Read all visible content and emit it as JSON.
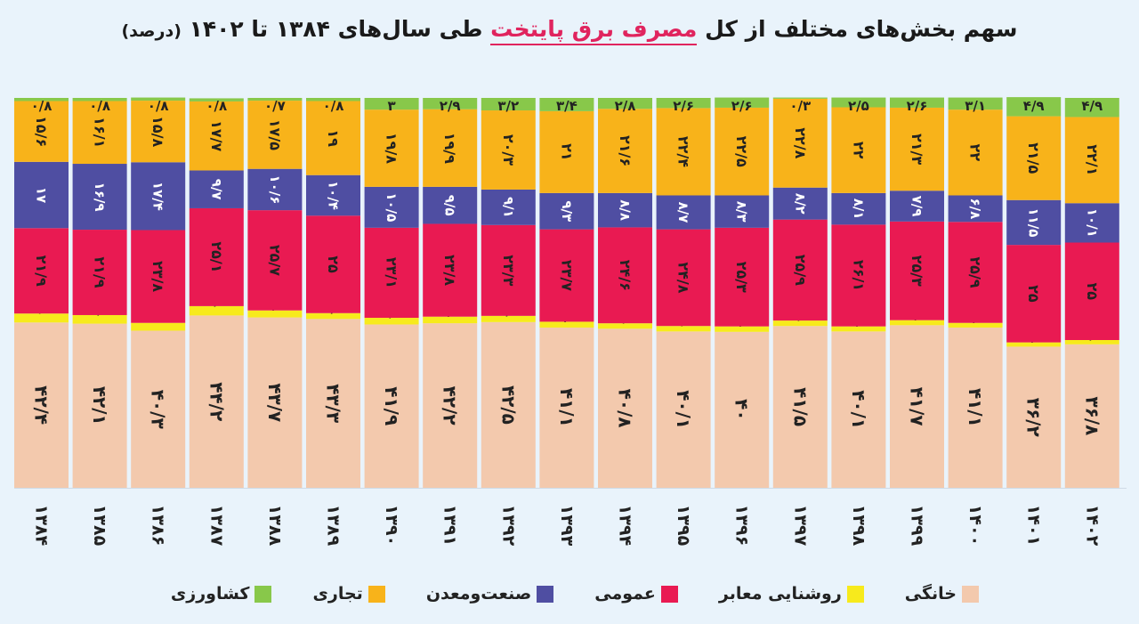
{
  "title": {
    "part1": "سهم بخش‌های مختلف از کل ",
    "highlight": "مصرف برق پایتخت",
    "part2": " طی سال‌های ۱۳۸۴ تا ۱۴۰۲ ",
    "unit": "(درصد)"
  },
  "chart_data": {
    "type": "bar",
    "stacked": true,
    "categories": [
      "۱۳۸۴",
      "۱۳۸۵",
      "۱۳۸۶",
      "۱۳۸۷",
      "۱۳۸۸",
      "۱۳۸۹",
      "۱۳۹۰",
      "۱۳۹۱",
      "۱۳۹۲",
      "۱۳۹۳",
      "۱۳۹۴",
      "۱۳۹۵",
      "۱۳۹۶",
      "۱۳۹۷",
      "۱۳۹۸",
      "۱۳۹۹",
      "۱۴۰۰",
      "۱۴۰۱",
      "۱۴۰۲"
    ],
    "series": [
      {
        "name": "خانگی",
        "color": "#f3c9ad",
        "values": [
          42.4,
          42.1,
          40.3,
          44.2,
          43.7,
          43.3,
          41.9,
          42.2,
          42.5,
          41.1,
          40.8,
          40.1,
          40,
          41.5,
          40.1,
          41.7,
          41.1,
          36.2,
          36.8
        ],
        "labels": [
          "۴۲/۴",
          "۴۲/۱",
          "۴۰/۳",
          "۴۴/۲",
          "۴۳/۷",
          "۴۳/۳",
          "۴۱/۹",
          "۴۲/۲",
          "۴۲/۵",
          "۴۱/۱",
          "۴۰/۸",
          "۴۰/۱",
          "۴۰",
          "۴۱/۵",
          "۴۰/۱",
          "۴۱/۷",
          "۴۱/۱",
          "۳۶/۲",
          "۳۶/۸"
        ]
      },
      {
        "name": "روشنایی معابر",
        "color": "#f7ea1c",
        "values": [
          2.3,
          2.2,
          2,
          2.4,
          1.8,
          1.5,
          1.7,
          1.7,
          1.6,
          1.5,
          1.4,
          1.4,
          1.4,
          1.4,
          1.3,
          1.3,
          1.2,
          1.1,
          1.1
        ],
        "labels": [
          "۲/۳",
          "۲/۲",
          "۲",
          "۲/۴",
          "۱/۸",
          "۱/۵",
          "۱/۷",
          "۱/۷",
          "۱/۶",
          "۱/۵",
          "۱/۴",
          "۱/۴",
          "۱/۴",
          "۱/۴",
          "۱/۳",
          "۱/۳",
          "۱/۲",
          "۱/۱",
          "۱/۱"
        ]
      },
      {
        "name": "عمومی",
        "color": "#e91a52",
        "values": [
          21.9,
          21.9,
          23.8,
          25.1,
          25.7,
          25,
          23.1,
          23.8,
          23.3,
          23.7,
          24.6,
          24.8,
          25.3,
          25.9,
          26.1,
          25.3,
          25.9,
          25,
          25
        ],
        "labels": [
          "۲۱/۹",
          "۲۱/۹",
          "۲۳/۸",
          "۲۵/۱",
          "۲۵/۷",
          "۲۵",
          "۲۳/۱",
          "۲۳/۸",
          "۲۳/۳",
          "۲۳/۷",
          "۲۴/۶",
          "۲۴/۸",
          "۲۵/۳",
          "۲۵/۹",
          "۲۶/۱",
          "۲۵/۳",
          "۲۵/۹",
          "۲۵",
          "۲۵"
        ]
      },
      {
        "name": "صنعت‌ومعدن",
        "color": "#4f4ea2",
        "values": [
          17,
          16.9,
          17.4,
          9.7,
          10.6,
          10.4,
          10.5,
          9.5,
          9.1,
          9.3,
          8.8,
          8.7,
          8.3,
          8.2,
          8.1,
          7.9,
          6.8,
          11.5,
          10.1
        ],
        "labels": [
          "۱۷",
          "۱۶/۹",
          "۱۷/۴",
          "۹/۷",
          "۱۰/۶",
          "۱۰/۴",
          "۱۰/۵",
          "۹/۵",
          "۹/۱",
          "۹/۳",
          "۸/۸",
          "۸/۷",
          "۸/۳",
          "۸/۲",
          "۸/۱",
          "۷/۹",
          "۶/۸",
          "۱۱/۵",
          "۱۰/۱"
        ]
      },
      {
        "name": "تجاری",
        "color": "#f8b31a",
        "values": [
          15.6,
          16.1,
          15.8,
          17.7,
          17.5,
          19,
          19.8,
          19.9,
          20.3,
          21,
          21.6,
          22.4,
          22.5,
          22.8,
          22,
          21.3,
          22,
          21.5,
          22.1
        ],
        "labels": [
          "۱۵/۶",
          "۱۶/۱",
          "۱۵/۸",
          "۱۷/۷",
          "۱۷/۵",
          "۱۹",
          "۱۹/۸",
          "۱۹/۹",
          "۲۰/۳",
          "۲۱",
          "۲۱/۶",
          "۲۲/۴",
          "۲۲/۵",
          "۲۲/۸",
          "۲۲",
          "۲۱/۳",
          "۲۲",
          "۲۱/۵",
          "۲۲/۱"
        ]
      },
      {
        "name": "کشاورزی",
        "color": "#88c84a",
        "values": [
          0.8,
          0.8,
          0.8,
          0.8,
          0.7,
          0.8,
          3,
          2.9,
          3.2,
          3.4,
          2.8,
          2.6,
          2.6,
          0.3,
          2.5,
          2.6,
          3.1,
          4.9,
          4.9
        ],
        "labels": [
          "۰/۸",
          "۰/۸",
          "۰/۸",
          "۰/۸",
          "۰/۷",
          "۰/۸",
          "۳",
          "۲/۹",
          "۳/۲",
          "۳/۴",
          "۲/۸",
          "۲/۶",
          "۲/۶",
          "۰/۳",
          "۲/۵",
          "۲/۶",
          "۳/۱",
          "۴/۹",
          "۴/۹"
        ]
      }
    ],
    "ylim": [
      0,
      100
    ],
    "grid": false,
    "legend": "bottom"
  }
}
